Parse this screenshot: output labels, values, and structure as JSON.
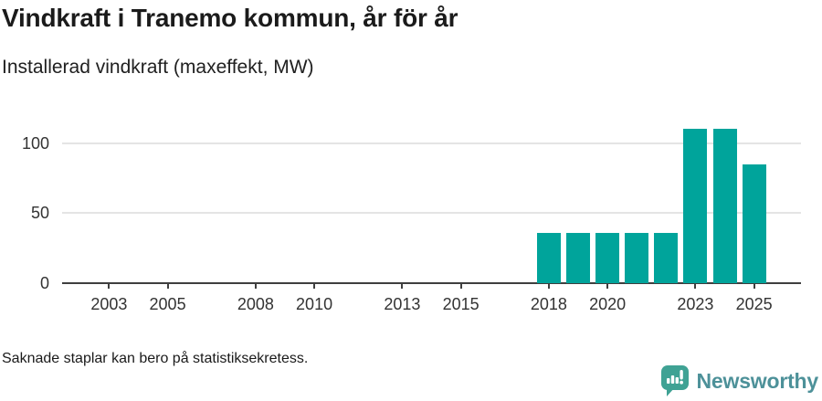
{
  "chart_data": {
    "type": "bar",
    "title": "Vindkraft i Tranemo kommun, år för år",
    "subtitle": "Installerad vindkraft (maxeffekt, MW)",
    "ylabel": "Installerad vindkraft (maxeffekt, MW)",
    "xlabel": "",
    "categories": [
      2018,
      2019,
      2020,
      2021,
      2022,
      2023,
      2024,
      2025
    ],
    "values": [
      36,
      36,
      36,
      36,
      36,
      110,
      110,
      85
    ],
    "bar_color": "#00a49b",
    "grid": true,
    "legend": "none",
    "x_axis": {
      "min": 2001.4,
      "max": 2026.6,
      "tick_values": [
        2003,
        2005,
        2008,
        2010,
        2013,
        2015,
        2018,
        2020,
        2023,
        2025
      ],
      "tick_labels": [
        "2003",
        "2005",
        "2008",
        "2010",
        "2013",
        "2015",
        "2018",
        "2020",
        "2023",
        "2025"
      ]
    },
    "y_axis": {
      "min": 0,
      "max": 124,
      "tick_values": [
        0,
        50,
        100
      ],
      "tick_labels": [
        "0",
        "50",
        "100"
      ]
    }
  },
  "footer": {
    "note": "Saknade staplar kan bero på statistiksekretess.",
    "brand": "Newsworthy",
    "brand_icon_color": "#3fa294",
    "brand_text_color": "#4d9199"
  },
  "colors": {
    "axis": "#3f3f3f",
    "gridline": "#e4e4e4"
  }
}
